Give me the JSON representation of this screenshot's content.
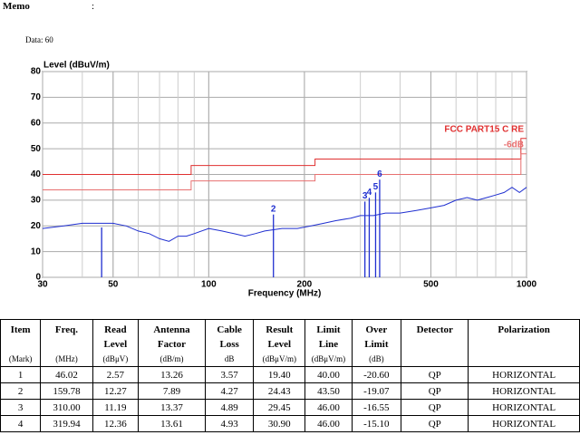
{
  "memo": {
    "label": "Memo",
    "sep": ":"
  },
  "data_line": "Data: 60",
  "chart_data": {
    "type": "line",
    "ylabel": "Level (dBuV/m)",
    "xlabel": "Frequency (MHz)",
    "log_x": true,
    "grid": true,
    "xlim": [
      30,
      1000
    ],
    "xticks": [
      30,
      50,
      100,
      200,
      500,
      1000
    ],
    "ylim": [
      0,
      80
    ],
    "yticks": [
      0,
      10,
      20,
      30,
      40,
      50,
      60,
      70,
      80
    ],
    "series": [
      {
        "color": "#1f2fd0",
        "x": [
          30,
          35,
          40,
          45,
          50,
          55,
          60,
          65,
          70,
          75,
          80,
          85,
          90,
          100,
          110,
          120,
          130,
          140,
          150,
          170,
          190,
          210,
          230,
          250,
          280,
          300,
          330,
          360,
          400,
          450,
          500,
          550,
          600,
          650,
          700,
          750,
          800,
          850,
          900,
          950,
          1000
        ],
        "values": [
          19,
          20,
          21,
          21,
          21,
          20,
          18,
          17,
          15,
          14,
          16,
          16,
          17,
          19,
          18,
          17,
          16,
          17,
          18,
          19,
          19,
          20,
          21,
          22,
          23,
          24,
          24,
          25,
          25,
          26,
          27,
          28,
          30,
          31,
          30,
          31,
          32,
          33,
          35,
          33,
          35
        ]
      }
    ],
    "limits": [
      {
        "name": "FCC PART15 C RE",
        "color": "#e03030",
        "x": [
          30,
          88,
          88,
          216,
          216,
          960,
          960,
          1000
        ],
        "values": [
          40,
          40,
          43.5,
          43.5,
          46,
          46,
          54,
          54
        ]
      },
      {
        "name": "-6dB",
        "color": "#e87070",
        "x": [
          30,
          88,
          88,
          216,
          216,
          960,
          960,
          1000
        ],
        "values": [
          34,
          34,
          37.5,
          37.5,
          40,
          40,
          48,
          48
        ]
      }
    ],
    "markers": {
      "color": "#1f2fd0",
      "x": [
        46.02,
        159.78,
        310.0,
        319.94,
        335,
        345
      ],
      "values": [
        19.4,
        24.43,
        29.45,
        30.9,
        33,
        38
      ],
      "labels": [
        null,
        "2",
        "3",
        "4",
        "5",
        "6"
      ]
    }
  },
  "table": {
    "headers": [
      "Item",
      "Freq.",
      "Read Level",
      "Antenna Factor",
      "Cable Loss",
      "Result Level",
      "Limit Line",
      "Over Limit",
      "Detector",
      "Polarization"
    ],
    "units": [
      "(Mark)",
      "(MHz)",
      "(dBμV)",
      "(dB/m)",
      "dB",
      "(dBμV/m)",
      "(dBμV/m)",
      "(dB)",
      null,
      null
    ],
    "rows": [
      [
        "1",
        "46.02",
        "2.57",
        "13.26",
        "3.57",
        "19.40",
        "40.00",
        "-20.60",
        "QP",
        "HORIZONTAL"
      ],
      [
        "2",
        "159.78",
        "12.27",
        "7.89",
        "4.27",
        "24.43",
        "43.50",
        "-19.07",
        "QP",
        "HORIZONTAL"
      ],
      [
        "3",
        "310.00",
        "11.19",
        "13.37",
        "4.89",
        "29.45",
        "46.00",
        "-16.55",
        "QP",
        "HORIZONTAL"
      ],
      [
        "4",
        "319.94",
        "12.36",
        "13.61",
        "4.93",
        "30.90",
        "46.00",
        "-15.10",
        "QP",
        "HORIZONTAL"
      ]
    ]
  }
}
